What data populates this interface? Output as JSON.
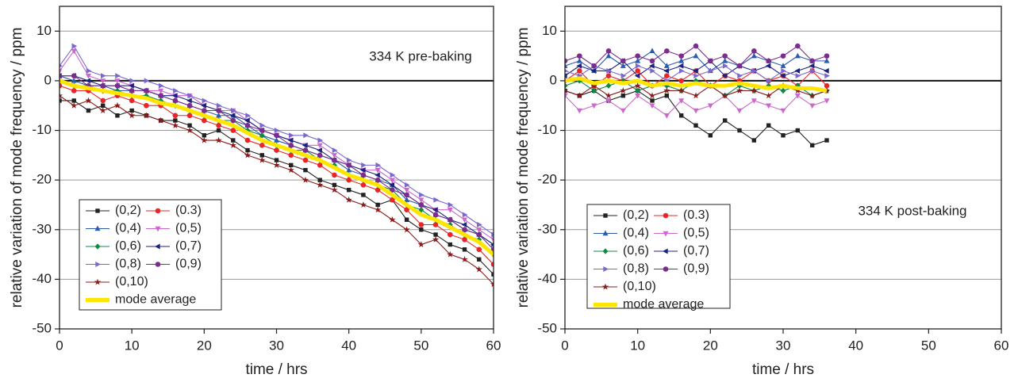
{
  "chart_data": [
    {
      "type": "line",
      "xlabel": "time / hrs",
      "ylabel": "relative variation of mode frequency / ppm",
      "annotation": "334 K pre-baking",
      "grid": true,
      "xlim": [
        0,
        60
      ],
      "ylim": [
        -50,
        15
      ],
      "xticks": [
        0,
        10,
        20,
        30,
        40,
        50,
        60
      ],
      "yticks": [
        -50,
        -40,
        -30,
        -20,
        -10,
        0,
        10
      ],
      "x": [
        0,
        2,
        4,
        6,
        8,
        10,
        12,
        14,
        16,
        18,
        20,
        22,
        24,
        26,
        28,
        30,
        32,
        34,
        36,
        38,
        40,
        42,
        44,
        46,
        48,
        50,
        52,
        54,
        56,
        58,
        60
      ],
      "series": [
        {
          "name": "(0,2)",
          "color": "#222222",
          "marker": "square",
          "values": [
            -4,
            -4,
            -6,
            -5,
            -7,
            -6,
            -7,
            -8,
            -8,
            -9,
            -11,
            -10,
            -12,
            -14,
            -15,
            -16,
            -17,
            -18,
            -20,
            -21,
            -22,
            -23,
            -25,
            -24,
            -28,
            -30,
            -31,
            -33,
            -34,
            -36,
            -39
          ]
        },
        {
          "name": "(0.3)",
          "color": "#e8262a",
          "marker": "circle",
          "values": [
            -1,
            -2,
            -2,
            -4,
            -3,
            -4,
            -5,
            -5,
            -7,
            -7,
            -8,
            -9,
            -10,
            -12,
            -13,
            -14,
            -15,
            -16,
            -17,
            -19,
            -20,
            -21,
            -22,
            -24,
            -26,
            -29,
            -29,
            -31,
            -32,
            -34,
            -37
          ]
        },
        {
          "name": "(0,4)",
          "color": "#2a5caa",
          "marker": "tri-up",
          "values": [
            1,
            0,
            -1,
            -1,
            -2,
            -2,
            -2,
            -3,
            -4,
            -5,
            -6,
            -7,
            -7,
            -9,
            -11,
            -12,
            -13,
            -14,
            -15,
            -16,
            -18,
            -19,
            -20,
            -21,
            -24,
            -25,
            -27,
            -28,
            -30,
            -31,
            -33
          ]
        },
        {
          "name": "(0,5)",
          "color": "#cc66cc",
          "marker": "tri-down",
          "values": [
            2,
            6,
            1,
            0,
            0,
            -1,
            -2,
            -2,
            -3,
            -3,
            -5,
            -6,
            -6,
            -8,
            -10,
            -11,
            -12,
            -13,
            -13,
            -15,
            -17,
            -18,
            -18,
            -20,
            -22,
            -24,
            -26,
            -26,
            -28,
            -30,
            -32
          ]
        },
        {
          "name": "(0,6)",
          "color": "#118844",
          "marker": "diamond",
          "values": [
            0,
            -1,
            -1,
            -2,
            -2,
            -3,
            -3,
            -4,
            -5,
            -6,
            -7,
            -8,
            -8,
            -10,
            -11,
            -13,
            -14,
            -14,
            -16,
            -17,
            -19,
            -20,
            -21,
            -22,
            -25,
            -26,
            -28,
            -29,
            -31,
            -32,
            -35
          ]
        },
        {
          "name": "(0,7)",
          "color": "#1a237e",
          "marker": "tri-left",
          "values": [
            1,
            1,
            0,
            -1,
            -1,
            -1,
            -2,
            -3,
            -3,
            -4,
            -5,
            -6,
            -7,
            -8,
            -10,
            -11,
            -12,
            -13,
            -14,
            -16,
            -17,
            -18,
            -19,
            -21,
            -23,
            -25,
            -26,
            -28,
            -29,
            -31,
            -33
          ]
        },
        {
          "name": "(0,8)",
          "color": "#7b68cf",
          "marker": "tri-right",
          "values": [
            3,
            7,
            2,
            1,
            1,
            0,
            0,
            -1,
            -2,
            -3,
            -4,
            -5,
            -6,
            -7,
            -9,
            -10,
            -11,
            -11,
            -12,
            -14,
            -16,
            -17,
            -17,
            -19,
            -21,
            -23,
            -24,
            -25,
            -27,
            -29,
            -31
          ]
        },
        {
          "name": "(0,9)",
          "color": "#7b2d8e",
          "marker": "circle",
          "values": [
            1,
            1,
            -1,
            -1,
            -1,
            -2,
            -2,
            -3,
            -4,
            -5,
            -6,
            -6,
            -8,
            -9,
            -10,
            -11,
            -13,
            -14,
            -15,
            -16,
            -17,
            -19,
            -20,
            -22,
            -23,
            -25,
            -27,
            -28,
            -30,
            -31,
            -34
          ]
        },
        {
          "name": "(0,10)",
          "color": "#8b1a1a",
          "marker": "star",
          "values": [
            -3,
            -5,
            -4,
            -6,
            -5,
            -7,
            -7,
            -8,
            -9,
            -10,
            -12,
            -12,
            -13,
            -15,
            -16,
            -17,
            -18,
            -20,
            -21,
            -22,
            -24,
            -25,
            -26,
            -28,
            -30,
            -33,
            -32,
            -35,
            -36,
            -38,
            -41
          ]
        },
        {
          "name": "mode average",
          "color": "#ffe600",
          "marker": "none",
          "values": [
            0,
            -1,
            -1.5,
            -2,
            -2.5,
            -3,
            -3.5,
            -4.5,
            -5,
            -6,
            -7,
            -8,
            -9,
            -10.5,
            -12,
            -13,
            -14,
            -15,
            -16,
            -17.5,
            -19,
            -20,
            -21,
            -23,
            -25,
            -27,
            -28,
            -29.5,
            -31,
            -32.5,
            -35
          ]
        }
      ]
    },
    {
      "type": "line",
      "xlabel": "time / hrs",
      "ylabel": "relative variation of mode frequency / ppm",
      "annotation": "334 K post-baking",
      "grid": true,
      "xlim": [
        0,
        60
      ],
      "ylim": [
        -50,
        15
      ],
      "xticks": [
        0,
        10,
        20,
        30,
        40,
        50,
        60
      ],
      "yticks": [
        -50,
        -40,
        -30,
        -20,
        -10,
        0,
        10
      ],
      "x": [
        0,
        2,
        4,
        6,
        8,
        10,
        12,
        14,
        16,
        18,
        20,
        22,
        24,
        26,
        28,
        30,
        32,
        34,
        36
      ],
      "series": [
        {
          "name": "(0,2)",
          "color": "#222222",
          "marker": "square",
          "values": [
            -2,
            -3,
            -2,
            -4,
            -3,
            -2,
            -4,
            -3,
            -7,
            -9,
            -11,
            -8,
            -10,
            -12,
            -9,
            -11,
            -10,
            -13,
            -12
          ]
        },
        {
          "name": "(0.3)",
          "color": "#e8262a",
          "marker": "circle",
          "values": [
            0,
            2,
            -1,
            1,
            0,
            2,
            -1,
            1,
            0,
            2,
            -1,
            1,
            0,
            2,
            0,
            1,
            -1,
            2,
            -1
          ]
        },
        {
          "name": "(0,4)",
          "color": "#2a5caa",
          "marker": "tri-up",
          "values": [
            3,
            4,
            2,
            5,
            3,
            4,
            6,
            3,
            4,
            5,
            2,
            4,
            3,
            5,
            4,
            3,
            5,
            4,
            4
          ]
        },
        {
          "name": "(0,5)",
          "color": "#cc66cc",
          "marker": "tri-down",
          "values": [
            -3,
            -6,
            -5,
            -4,
            -6,
            -3,
            -5,
            -7,
            -4,
            -6,
            -5,
            -3,
            -6,
            -4,
            -5,
            -6,
            -3,
            -5,
            -4
          ]
        },
        {
          "name": "(0,6)",
          "color": "#118844",
          "marker": "diamond",
          "values": [
            -1,
            0,
            -2,
            -1,
            0,
            -2,
            -1,
            -1,
            -2,
            0,
            -1,
            -3,
            -1,
            -2,
            -1,
            -2,
            -1,
            -3,
            -2
          ]
        },
        {
          "name": "(0,7)",
          "color": "#1a237e",
          "marker": "tri-left",
          "values": [
            1,
            3,
            2,
            2,
            4,
            1,
            3,
            2,
            3,
            2,
            4,
            1,
            3,
            2,
            3,
            1,
            2,
            3,
            2
          ]
        },
        {
          "name": "(0,8)",
          "color": "#7b68cf",
          "marker": "tri-right",
          "values": [
            2,
            1,
            3,
            2,
            1,
            3,
            2,
            0,
            2,
            1,
            2,
            3,
            1,
            2,
            0,
            2,
            1,
            2,
            1
          ]
        },
        {
          "name": "(0,9)",
          "color": "#7b2d8e",
          "marker": "circle",
          "values": [
            4,
            5,
            3,
            6,
            4,
            5,
            4,
            6,
            5,
            7,
            4,
            5,
            3,
            6,
            4,
            5,
            7,
            4,
            5
          ]
        },
        {
          "name": "(0,10)",
          "color": "#8b1a1a",
          "marker": "star",
          "values": [
            -2,
            -3,
            -1,
            -3,
            -2,
            -1,
            -3,
            -2,
            -2,
            -3,
            -1,
            -3,
            -2,
            -2,
            -3,
            -1,
            -2,
            -3,
            -2
          ]
        },
        {
          "name": "mode average",
          "color": "#ffe600",
          "marker": "none",
          "values": [
            0,
            0.5,
            -0.5,
            0,
            -0.5,
            0,
            -1,
            -0.5,
            -1,
            -0.5,
            -1,
            -1,
            -0.5,
            -1,
            -1.5,
            -1,
            -1.5,
            -1.5,
            -2
          ]
        }
      ]
    }
  ]
}
